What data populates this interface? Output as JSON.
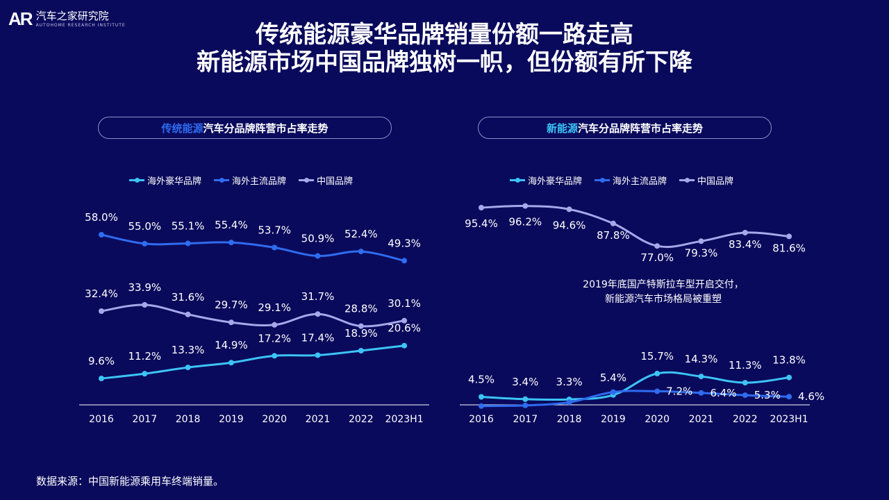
{
  "logo": {
    "mark": "AR",
    "name": "汽车之家研究院",
    "subname": "AUTOHOME RESEARCH INSTITUTE"
  },
  "title": {
    "line1": "传统能源豪华品牌销量份额一路走高",
    "line2": "新能源市场中国品牌独树一帜，但份额有所下降"
  },
  "colors": {
    "background": "#0a0a5c",
    "luxury": "#3cc4f5",
    "mainstream": "#2f6cf0",
    "chinese": "#a6a8ea",
    "axis": "#ffffff"
  },
  "chart_data": [
    {
      "type": "line",
      "title_highlight": "传统能源",
      "title_rest": "汽车分品牌阵营市占率走势",
      "categories": [
        "2016",
        "2017",
        "2018",
        "2019",
        "2020",
        "2021",
        "2022",
        "2023H1"
      ],
      "series": [
        {
          "name": "海外豪华品牌",
          "color": "#3cc4f5",
          "values": [
            9.6,
            11.2,
            13.3,
            14.9,
            17.2,
            17.4,
            18.9,
            20.6
          ],
          "labels": [
            "9.6%",
            "11.2%",
            "13.3%",
            "14.9%",
            "17.2%",
            "17.4%",
            "18.9%",
            "20.6%"
          ]
        },
        {
          "name": "海外主流品牌",
          "color": "#2f6cf0",
          "values": [
            58.0,
            55.0,
            55.1,
            55.4,
            53.7,
            50.9,
            52.4,
            49.3
          ],
          "labels": [
            "58.0%",
            "55.0%",
            "55.1%",
            "55.4%",
            "53.7%",
            "50.9%",
            "52.4%",
            "49.3%"
          ]
        },
        {
          "name": "中国品牌",
          "color": "#a6a8ea",
          "values": [
            32.4,
            33.9,
            31.6,
            29.7,
            29.1,
            31.7,
            28.8,
            30.1
          ],
          "labels": [
            "32.4%",
            "33.9%",
            "31.6%",
            "29.7%",
            "29.1%",
            "31.7%",
            "28.8%",
            "30.1%"
          ]
        }
      ]
    },
    {
      "type": "line",
      "title_highlight": "新能源",
      "title_rest": "汽车分品牌阵营市占率走势",
      "categories": [
        "2016",
        "2017",
        "2018",
        "2019",
        "2020",
        "2021",
        "2022",
        "2023H1"
      ],
      "series": [
        {
          "name": "海外豪华品牌",
          "color": "#3cc4f5",
          "values": [
            4.5,
            3.4,
            3.3,
            5.4,
            15.7,
            14.3,
            11.3,
            13.8
          ],
          "labels": [
            "4.5%",
            "3.4%",
            "3.3%",
            "5.4%",
            "15.7%",
            "14.3%",
            "11.3%",
            "13.8%"
          ]
        },
        {
          "name": "海外主流品牌",
          "color": "#2f6cf0",
          "values": [
            0.1,
            0.4,
            1.9,
            6.8,
            7.2,
            6.4,
            5.3,
            4.6
          ],
          "labels": [
            "",
            "",
            "",
            "",
            "7.2%",
            "6.4%",
            "5.3%",
            "4.6%"
          ]
        },
        {
          "name": "中国品牌",
          "color": "#a6a8ea",
          "values": [
            95.4,
            96.2,
            94.6,
            87.8,
            77.0,
            79.3,
            83.4,
            81.6
          ],
          "labels": [
            "95.4%",
            "96.2%",
            "94.6%",
            "87.8%",
            "77.0%",
            "79.3%",
            "83.4%",
            "81.6%"
          ]
        }
      ],
      "annotation_line1": "2019年底国产特斯拉车型开启交付，",
      "annotation_line2": "新能源汽车市场格局被重塑"
    }
  ],
  "source": "数据来源：中国新能源乘用车终端销量。"
}
